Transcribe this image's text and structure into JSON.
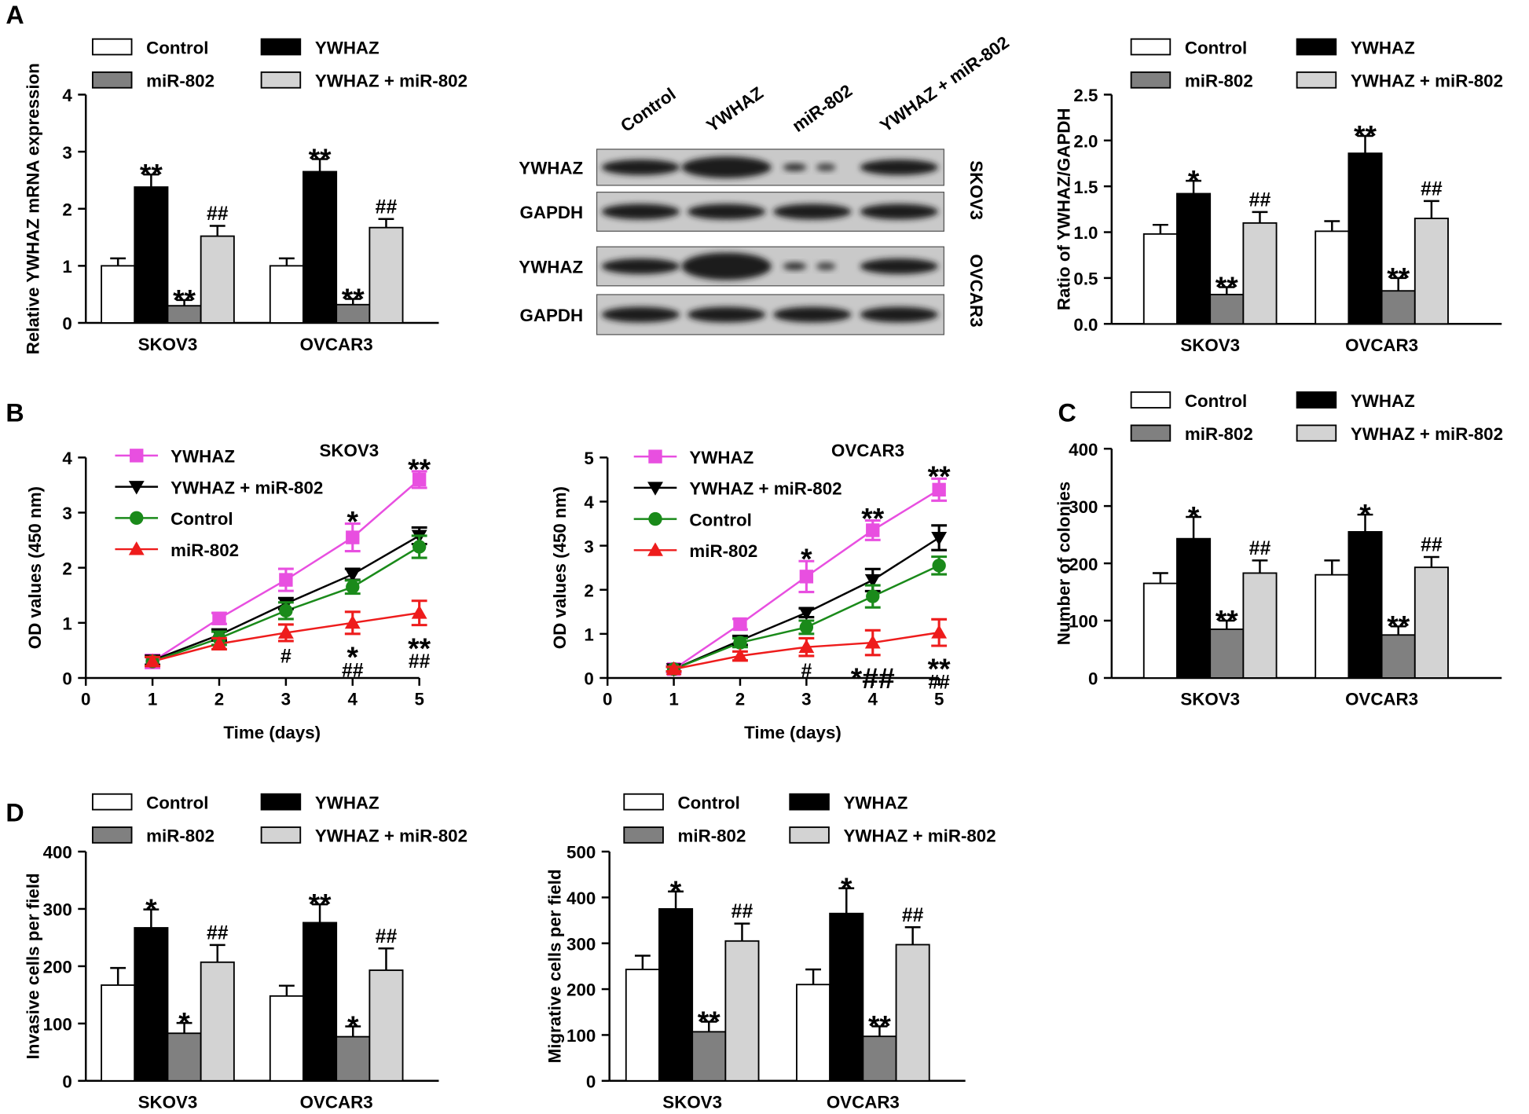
{
  "panel_labels": [
    "A",
    "B",
    "C",
    "D"
  ],
  "blot": {
    "lanes": [
      "Control",
      "YWHAZ",
      "miR-802",
      "YWHAZ + miR-802"
    ],
    "rows": [
      "YWHAZ",
      "GAPDH",
      "YWHAZ",
      "GAPDH"
    ],
    "cell_lines": [
      "SKOV3",
      "OVCAR3"
    ]
  },
  "chart_data": [
    {
      "type": "bar",
      "y_label": "Relative YWHAZ mRNA expression",
      "categories": [
        "SKOV3",
        "OVCAR3"
      ],
      "ylim": [
        0,
        4
      ],
      "yticks": [
        0,
        1,
        2,
        3,
        4
      ],
      "series": [
        {
          "name": "Control",
          "color": "#ffffff",
          "values": [
            1.0,
            1.0
          ],
          "errors": [
            0.13,
            0.13
          ]
        },
        {
          "name": "YWHAZ",
          "color": "#000000",
          "values": [
            2.38,
            2.65
          ],
          "errors": [
            0.22,
            0.22
          ],
          "annotations": [
            "**",
            "**"
          ]
        },
        {
          "name": "miR-802",
          "color": "#808080",
          "values": [
            0.3,
            0.32
          ],
          "errors": [
            0.1,
            0.1
          ],
          "annotations": [
            "**",
            "**"
          ]
        },
        {
          "name": "YWHAZ + miR-802",
          "color": "#d3d3d3",
          "values": [
            1.52,
            1.67
          ],
          "errors": [
            0.18,
            0.15
          ],
          "annotations": [
            "##",
            "##"
          ]
        }
      ]
    },
    {
      "type": "bar",
      "y_label": "Ratio of YWHAZ/GAPDH",
      "categories": [
        "SKOV3",
        "OVCAR3"
      ],
      "ylim": [
        0,
        2.5
      ],
      "yticks": [
        {
          "value": 0,
          "label": "0.0"
        },
        0.5,
        {
          "value": 1,
          "label": "1.0"
        },
        1.5,
        {
          "value": 2,
          "label": "2.0"
        },
        2.5
      ],
      "series": [
        {
          "name": "Control",
          "color": "#ffffff",
          "values": [
            0.98,
            1.01
          ],
          "errors": [
            0.1,
            0.11
          ]
        },
        {
          "name": "YWHAZ",
          "color": "#000000",
          "values": [
            1.42,
            1.86
          ],
          "errors": [
            0.14,
            0.19
          ],
          "annotations": [
            "*",
            "**"
          ]
        },
        {
          "name": "miR-802",
          "color": "#808080",
          "values": [
            0.32,
            0.36
          ],
          "errors": [
            0.08,
            0.14
          ],
          "annotations": [
            "**",
            "**"
          ]
        },
        {
          "name": "YWHAZ + miR-802",
          "color": "#d3d3d3",
          "values": [
            1.1,
            1.15
          ],
          "errors": [
            0.12,
            0.19
          ],
          "annotations": [
            "##",
            "##"
          ]
        }
      ]
    },
    {
      "type": "line",
      "title": "SKOV3",
      "x_label": "Time (days)",
      "y_label": "OD values (450 nm)",
      "x": [
        1,
        2,
        3,
        4,
        5
      ],
      "xlim": [
        0,
        5
      ],
      "xticks": [
        0,
        1,
        2,
        3,
        4,
        5
      ],
      "ylim": [
        0,
        4
      ],
      "yticks": [
        0,
        1,
        2,
        3,
        4
      ],
      "series": [
        {
          "name": "YWHAZ",
          "color": "#e84fe0",
          "marker": "square",
          "values": [
            0.3,
            1.08,
            1.78,
            2.55,
            3.6
          ],
          "errors": [
            0.12,
            0.1,
            0.2,
            0.25,
            0.15
          ],
          "annotations": [
            null,
            null,
            null,
            "*",
            "**"
          ]
        },
        {
          "name": "YWHAZ + miR-802",
          "color": "#000000",
          "marker": "triangle-down",
          "values": [
            0.32,
            0.78,
            1.35,
            1.88,
            2.58
          ],
          "errors": [
            0.08,
            0.1,
            0.1,
            0.1,
            0.15
          ]
        },
        {
          "name": "Control",
          "color": "#1a8a1a",
          "marker": "circle",
          "values": [
            0.3,
            0.72,
            1.22,
            1.65,
            2.38
          ],
          "errors": [
            0.08,
            0.12,
            0.15,
            0.12,
            0.2
          ]
        },
        {
          "name": "miR-802",
          "color": "#ee1c1c",
          "marker": "triangle-up",
          "values": [
            0.3,
            0.62,
            0.82,
            1.0,
            1.18
          ],
          "errors": [
            0.08,
            0.1,
            0.15,
            0.2,
            0.22
          ],
          "annotations": [
            null,
            null,
            "#",
            [
              "*",
              "##"
            ],
            [
              "**",
              "##"
            ]
          ]
        }
      ]
    },
    {
      "type": "line",
      "title": "OVCAR3",
      "x_label": "Time (days)",
      "y_label": "OD values (450 nm)",
      "x": [
        1,
        2,
        3,
        4,
        5
      ],
      "xlim": [
        0,
        5
      ],
      "xticks": [
        0,
        1,
        2,
        3,
        4,
        5
      ],
      "ylim": [
        0,
        5
      ],
      "yticks": [
        0,
        1,
        2,
        3,
        4,
        5
      ],
      "series": [
        {
          "name": "YWHAZ",
          "color": "#e84fe0",
          "marker": "square",
          "values": [
            0.2,
            1.22,
            2.3,
            3.35,
            4.27
          ],
          "errors": [
            0.08,
            0.12,
            0.35,
            0.22,
            0.25
          ],
          "annotations": [
            null,
            null,
            "*",
            "**",
            "**"
          ]
        },
        {
          "name": "YWHAZ + miR-802",
          "color": "#000000",
          "marker": "triangle-down",
          "values": [
            0.2,
            0.85,
            1.48,
            2.22,
            3.18
          ],
          "errors": [
            0.05,
            0.1,
            0.1,
            0.25,
            0.28
          ]
        },
        {
          "name": "Control",
          "color": "#1a8a1a",
          "marker": "circle",
          "values": [
            0.2,
            0.8,
            1.15,
            1.85,
            2.55
          ],
          "errors": [
            0.05,
            0.1,
            0.15,
            0.25,
            0.2
          ]
        },
        {
          "name": "miR-802",
          "color": "#ee1c1c",
          "marker": "triangle-up",
          "values": [
            0.2,
            0.5,
            0.7,
            0.8,
            1.03
          ],
          "errors": [
            0.05,
            0.1,
            0.2,
            0.28,
            0.3
          ],
          "annotations": [
            null,
            null,
            "#",
            "*##",
            [
              "**",
              "##"
            ]
          ]
        }
      ]
    },
    {
      "type": "bar",
      "y_label": "Number of colonies",
      "categories": [
        "SKOV3",
        "OVCAR3"
      ],
      "ylim": [
        0,
        400
      ],
      "yticks": [
        0,
        100,
        200,
        300,
        400
      ],
      "series": [
        {
          "name": "Control",
          "color": "#ffffff",
          "values": [
            165,
            180
          ],
          "errors": [
            18,
            25
          ]
        },
        {
          "name": "YWHAZ",
          "color": "#000000",
          "values": [
            243,
            255
          ],
          "errors": [
            38,
            30
          ],
          "annotations": [
            "*",
            "*"
          ]
        },
        {
          "name": "miR-802",
          "color": "#808080",
          "values": [
            85,
            75
          ],
          "errors": [
            15,
            15
          ],
          "annotations": [
            "**",
            "**"
          ]
        },
        {
          "name": "YWHAZ + miR-802",
          "color": "#d3d3d3",
          "values": [
            183,
            193
          ],
          "errors": [
            22,
            18
          ],
          "annotations": [
            "##",
            "##"
          ]
        }
      ]
    },
    {
      "type": "bar",
      "y_label": "Invasive cells per field",
      "categories": [
        "SKOV3",
        "OVCAR3"
      ],
      "ylim": [
        0,
        400
      ],
      "yticks": [
        0,
        100,
        200,
        300,
        400
      ],
      "series": [
        {
          "name": "Control",
          "color": "#ffffff",
          "values": [
            167,
            148
          ],
          "errors": [
            30,
            18
          ]
        },
        {
          "name": "YWHAZ",
          "color": "#000000",
          "values": [
            267,
            276
          ],
          "errors": [
            32,
            32
          ],
          "annotations": [
            "*",
            "**"
          ]
        },
        {
          "name": "miR-802",
          "color": "#808080",
          "values": [
            83,
            77
          ],
          "errors": [
            18,
            18
          ],
          "annotations": [
            "*",
            "*"
          ]
        },
        {
          "name": "YWHAZ + miR-802",
          "color": "#d3d3d3",
          "values": [
            207,
            193
          ],
          "errors": [
            30,
            38
          ],
          "annotations": [
            "##",
            "##"
          ]
        }
      ]
    },
    {
      "type": "bar",
      "y_label": "Migrative cells per field",
      "categories": [
        "SKOV3",
        "OVCAR3"
      ],
      "ylim": [
        0,
        500
      ],
      "yticks": [
        0,
        100,
        200,
        300,
        400,
        500
      ],
      "series": [
        {
          "name": "Control",
          "color": "#ffffff",
          "values": [
            243,
            210
          ],
          "errors": [
            30,
            33
          ]
        },
        {
          "name": "YWHAZ",
          "color": "#000000",
          "values": [
            375,
            365
          ],
          "errors": [
            38,
            55
          ],
          "annotations": [
            "*",
            "*"
          ]
        },
        {
          "name": "miR-802",
          "color": "#808080",
          "values": [
            107,
            97
          ],
          "errors": [
            22,
            22
          ],
          "annotations": [
            "**",
            "**"
          ]
        },
        {
          "name": "YWHAZ + miR-802",
          "color": "#d3d3d3",
          "values": [
            305,
            297
          ],
          "errors": [
            38,
            38
          ],
          "annotations": [
            "##",
            "##"
          ]
        }
      ]
    }
  ]
}
